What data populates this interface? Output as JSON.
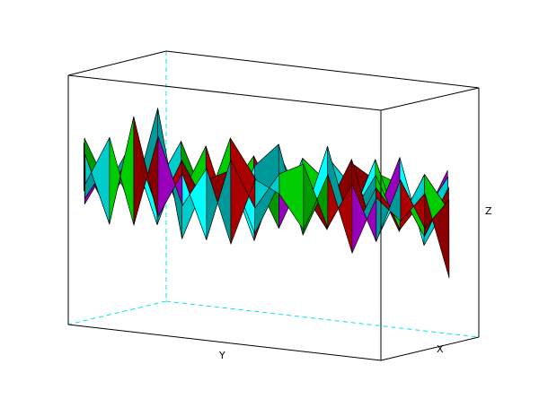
{
  "chart_data": {
    "type": "surface3d",
    "xlabel": "X",
    "ylabel": "Y",
    "zlabel": "Z",
    "grid": false,
    "legend": "none",
    "colormap": [
      "#00ffff",
      "#00cccc",
      "#009999",
      "#00cc00",
      "#009900",
      "#aa0000",
      "#880000",
      "#9900bb"
    ],
    "z_grid": [
      [
        0.0,
        1.6,
        -1.2,
        1.8,
        -0.4,
        0.9,
        -1.5,
        0.7,
        0.3,
        -0.8,
        1.1,
        -1.4,
        0.5,
        -0.2,
        0.8,
        -1.9
      ],
      [
        0.9,
        -1.3,
        2.3,
        -0.9,
        0.6,
        -1.5,
        1.2,
        -0.3,
        0.9,
        1.3,
        -0.7,
        0.8,
        -1.0,
        1.1,
        -0.4,
        0.6
      ],
      [
        -0.6,
        0.7,
        -0.5,
        2.6,
        -1.6,
        0.4,
        0.8,
        -1.2,
        0.5,
        -0.6,
        1.9,
        -0.9,
        0.7,
        -0.3,
        1.3,
        0.2
      ],
      [
        0.4,
        -1.1,
        1.4,
        -0.8,
        0.9,
        -0.5,
        1.8,
        0.6,
        -1.0,
        0.8,
        -0.2,
        1.5,
        -1.1,
        0.6,
        -0.8,
        0.9
      ],
      [
        -0.9,
        0.5,
        -0.7,
        1.2,
        -0.3,
        1.4,
        -1.0,
        0.9,
        1.7,
        -1.2,
        0.6,
        -0.4,
        1.0,
        -0.7,
        0.4,
        -0.5
      ],
      [
        1.2,
        -0.4,
        0.9,
        -1.4,
        0.8,
        -0.9,
        0.5,
        -1.6,
        0.7,
        0.2,
        -1.0,
        0.9,
        -0.5,
        1.6,
        -1.2,
        0.3
      ],
      [
        -0.3,
        0.8,
        -1.1,
        0.6,
        -0.5,
        1.1,
        -0.7,
        0.4,
        -0.9,
        1.2,
        0.5,
        -0.6,
        1.4,
        -0.8,
        0.7,
        -0.4
      ],
      [
        0.6,
        -0.9,
        0.4,
        -0.2,
        1.3,
        -0.6,
        0.9,
        -0.4,
        0.6,
        -0.7,
        1.3,
        0.4,
        -0.9,
        0.5,
        -0.3,
        1.0
      ],
      [
        -0.7,
        0.3,
        -0.8,
        0.9,
        -1.2,
        0.5,
        -0.3,
        1.0,
        -0.5,
        0.8,
        -1.1,
        1.1,
        0.6,
        -1.0,
        0.9,
        -0.6
      ],
      [
        0.8,
        -0.5,
        1.0,
        -0.6,
        0.7,
        -1.3,
        0.6,
        -0.8,
        1.2,
        -0.4,
        0.7,
        -0.9,
        0.8,
        0.5,
        -0.6,
        1.1
      ]
    ]
  }
}
